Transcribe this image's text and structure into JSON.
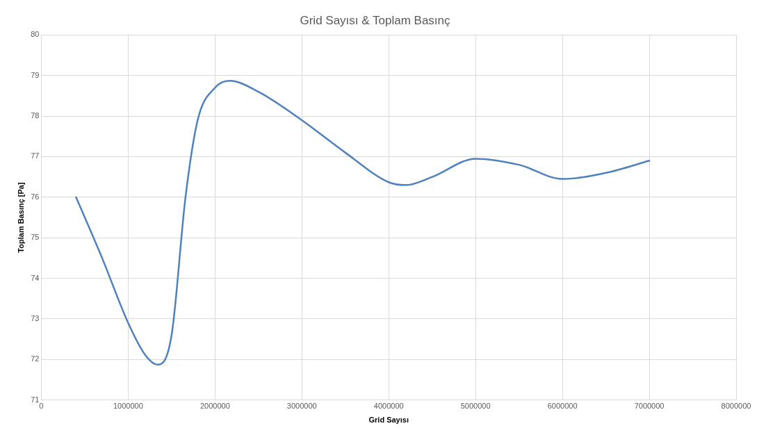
{
  "chart_data": {
    "type": "line",
    "title": "Grid Sayısı & Toplam Basınç",
    "xlabel": "Grid Sayısı",
    "ylabel": "Toplam Basınç [Pa]",
    "x": [
      400000,
      700000,
      1000000,
      1200000,
      1340000,
      1500000,
      1660000,
      1800000,
      2000000,
      2170000,
      2500000,
      3000000,
      3500000,
      4000000,
      4200000,
      4500000,
      5000000,
      5500000,
      6000000,
      6500000,
      7000000
    ],
    "series": [
      {
        "color": "#4f81bd",
        "values": [
          76,
          74.5,
          72.9,
          72.1,
          71.87,
          72.6,
          76,
          77.9,
          78.7,
          78.87,
          78.6,
          77.9,
          77.1,
          76.37,
          76.3,
          76.5,
          76.95,
          76.8,
          76.45,
          76.6,
          76.9
        ]
      }
    ],
    "xlim": [
      0,
      8000000
    ],
    "xticks": [
      0,
      1000000,
      2000000,
      3000000,
      4000000,
      5000000,
      6000000,
      7000000,
      8000000
    ],
    "ylim": [
      71,
      80
    ],
    "yticks": [
      71,
      72,
      73,
      74,
      75,
      76,
      77,
      78,
      79,
      80
    ],
    "grid": true,
    "legend": false,
    "marker": "none",
    "line_style": "solid"
  }
}
